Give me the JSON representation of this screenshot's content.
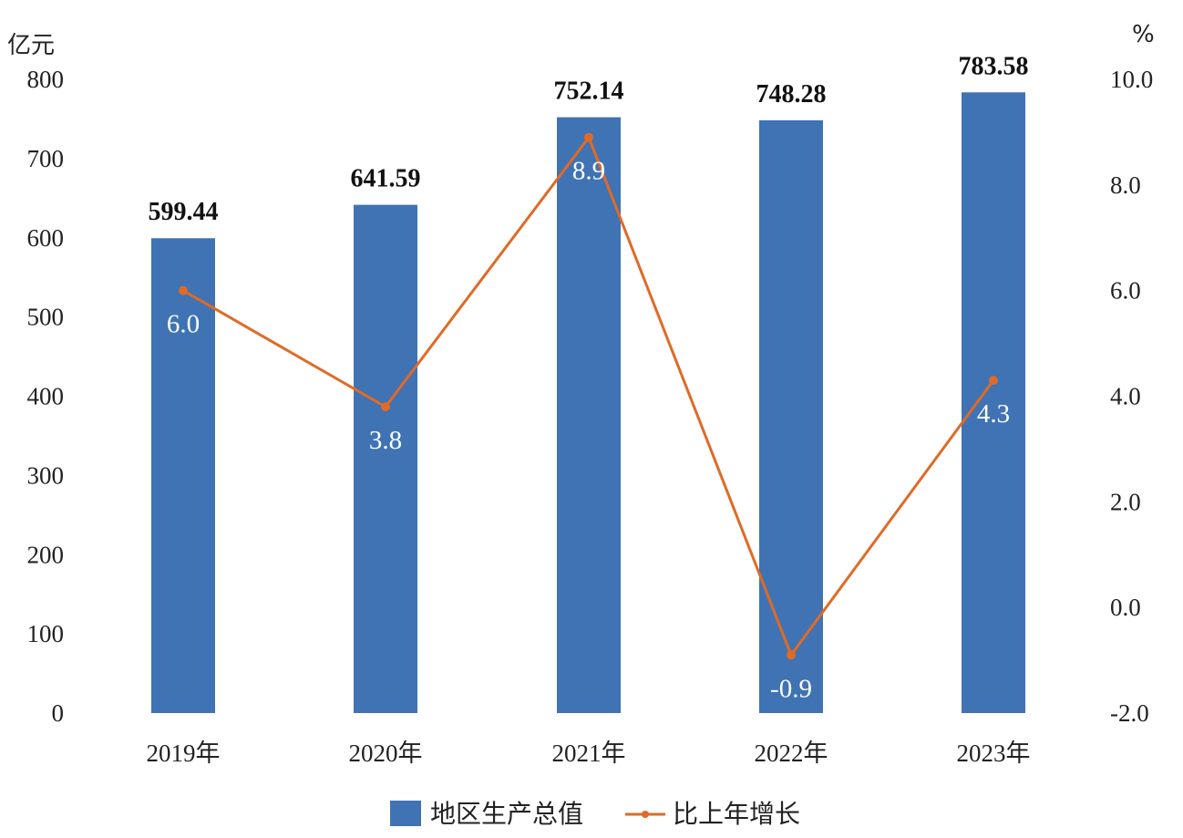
{
  "chart_data": {
    "type": "bar",
    "categories": [
      "2019年",
      "2020年",
      "2021年",
      "2022年",
      "2023年"
    ],
    "series": [
      {
        "name": "地区生产总值",
        "type": "bar",
        "axis": "left",
        "values": [
          599.44,
          641.59,
          752.14,
          748.28,
          783.58
        ]
      },
      {
        "name": "比上年增长",
        "type": "line",
        "axis": "right",
        "values": [
          6.0,
          3.8,
          8.9,
          -0.9,
          4.3
        ]
      }
    ],
    "bar_labels": [
      "599.44",
      "641.59",
      "752.14",
      "748.28",
      "783.58"
    ],
    "line_labels": [
      "6.0",
      "3.8",
      "8.9",
      "-0.9",
      "4.3"
    ],
    "y_left": {
      "unit": "亿元",
      "ylim": [
        0,
        800
      ],
      "ticks": [
        "0",
        "100",
        "200",
        "300",
        "400",
        "500",
        "600",
        "700",
        "800"
      ]
    },
    "y_right": {
      "unit": "%",
      "ylim": [
        -2.0,
        10.0
      ],
      "ticks": [
        "-2.0",
        "0.0",
        "2.0",
        "4.0",
        "6.0",
        "8.0",
        "10.0"
      ]
    },
    "legend": {
      "position": "bottom",
      "items": [
        "地区生产总值",
        "比上年增长"
      ]
    },
    "grid": false,
    "colors": {
      "bar": "#3f73b4",
      "line": "#e06a26"
    }
  }
}
